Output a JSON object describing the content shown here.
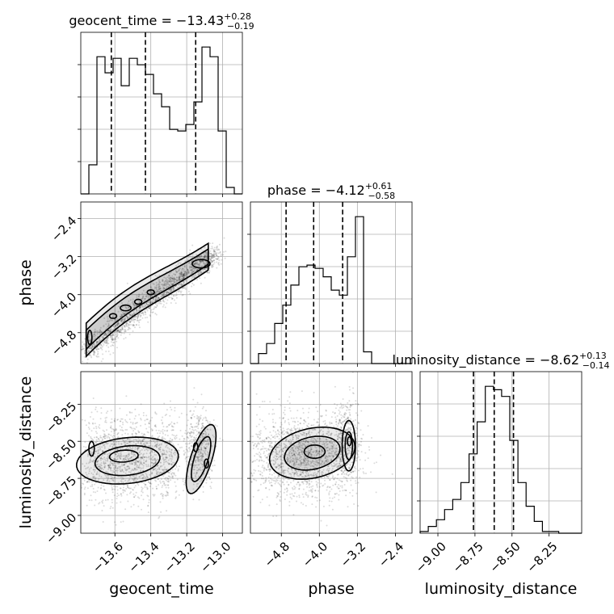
{
  "chart_data": {
    "type": "corner",
    "parameters": [
      "geocent_time",
      "phase",
      "luminosity_distance"
    ],
    "axis_ranges": {
      "geocent_time": [
        -13.79,
        -12.89
      ],
      "phase": [
        -5.45,
        -2.05
      ],
      "luminosity_distance": [
        -9.12,
        -8.03
      ]
    },
    "ticks": {
      "geocent_time": [
        -13.6,
        -13.4,
        -13.2,
        -13.0
      ],
      "phase": [
        -4.8,
        -4.0,
        -3.2,
        -2.4
      ],
      "luminosity_distance": [
        -9.0,
        -8.75,
        -8.5,
        -8.25
      ]
    },
    "tick_labels": {
      "geocent_time": [
        "−13.6",
        "−13.4",
        "−13.2",
        "−13.0"
      ],
      "phase": [
        "−4.8",
        "−4.0",
        "−3.2",
        "−2.4"
      ],
      "luminosity_distance": [
        "−9.00",
        "−8.75",
        "−8.50",
        "−8.25"
      ]
    },
    "titles": [
      {
        "param": "geocent_time",
        "median": -13.43,
        "plus": 0.28,
        "minus": 0.19,
        "text": "geocent_time = −13.43",
        "sup": "+0.28",
        "sub": "−0.19"
      },
      {
        "param": "phase",
        "median": -4.12,
        "plus": 0.61,
        "minus": 0.58,
        "text": "phase = −4.12",
        "sup": "+0.61",
        "sub": "−0.58"
      },
      {
        "param": "luminosity_distance",
        "median": -8.62,
        "plus": 0.13,
        "minus": 0.14,
        "text": "luminosity_distance = −8.62",
        "sup": "+0.13",
        "sub": "−0.14"
      }
    ],
    "histograms": {
      "geocent_time": {
        "bins": [
          -13.79,
          -13.745,
          -13.7,
          -13.655,
          -13.61,
          -13.565,
          -13.52,
          -13.475,
          -13.43,
          -13.385,
          -13.34,
          -13.295,
          -13.25,
          -13.205,
          -13.16,
          -13.115,
          -13.07,
          -13.025,
          -12.98,
          -12.935,
          -12.89
        ],
        "counts": [
          0,
          18,
          85,
          75,
          84,
          67,
          84,
          80,
          74,
          62,
          54,
          40,
          39,
          43,
          57,
          91,
          85,
          39,
          4,
          0
        ],
        "quantiles": [
          -13.62,
          -13.43,
          -13.15
        ]
      },
      "phase": {
        "bins": [
          -5.45,
          -5.28,
          -5.11,
          -4.94,
          -4.77,
          -4.6,
          -4.43,
          -4.26,
          -4.09,
          -3.92,
          -3.75,
          -3.58,
          -3.41,
          -3.24,
          -3.07,
          -2.9,
          -2.73,
          -2.56,
          -2.39,
          -2.22,
          -2.05
        ],
        "counts": [
          0,
          6,
          12,
          24,
          35,
          47,
          58,
          59,
          57,
          52,
          44,
          41,
          64,
          88,
          7,
          0,
          0,
          0,
          0,
          0
        ],
        "quantiles": [
          -4.7,
          -4.12,
          -3.51
        ]
      },
      "luminosity_distance": {
        "bins": [
          -9.12,
          -9.065,
          -9.01,
          -8.955,
          -8.9,
          -8.845,
          -8.79,
          -8.735,
          -8.68,
          -8.625,
          -8.57,
          -8.515,
          -8.46,
          -8.405,
          -8.35,
          -8.295,
          -8.24,
          -8.185,
          -8.13,
          -8.075,
          -8.03
        ],
        "counts": [
          1,
          4,
          8,
          14,
          20,
          30,
          47,
          66,
          87,
          85,
          81,
          55,
          30,
          16,
          7,
          1,
          1,
          0,
          0,
          0
        ],
        "quantiles": [
          -8.76,
          -8.62,
          -8.49
        ]
      }
    },
    "contour_levels": [
      0.118,
      0.393,
      0.675,
      0.865
    ],
    "grid": true,
    "axis_labels": {
      "x": [
        "geocent_time",
        "phase",
        "luminosity_distance"
      ],
      "y": [
        "phase",
        "luminosity_distance"
      ]
    }
  }
}
